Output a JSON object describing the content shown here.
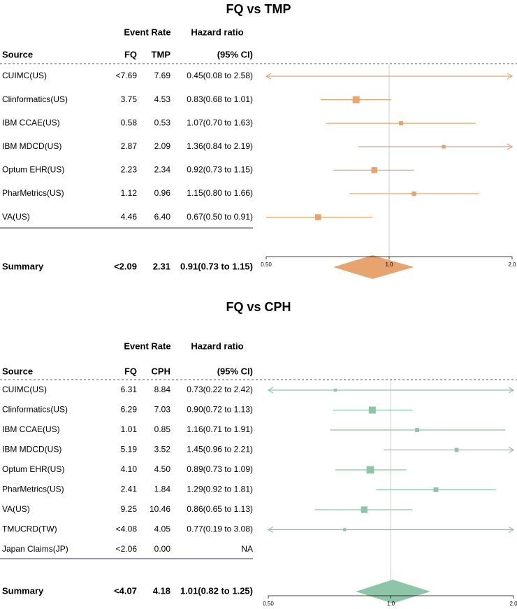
{
  "chart_data": [
    {
      "type": "forest",
      "title": "FQ vs TMP",
      "header": {
        "event_rate": "Event Rate",
        "hazard_ratio": "Hazard ratio",
        "source": "Source",
        "col_a": "FQ",
        "col_b": "TMP",
        "ci": "(95% CI)"
      },
      "color": "#e8a46f",
      "axis": {
        "min": 0.5,
        "max": 2.0,
        "scale": "log",
        "ref": 1.0,
        "ticks": [
          0.5,
          1.0,
          2.0
        ],
        "tick_labels": [
          "0.50",
          "1.0",
          "2.0"
        ]
      },
      "rows": [
        {
          "source": "CUIMC(US)",
          "a": "<7.69",
          "b": "7.69",
          "hr_text": "0.45(0.08 to 2.58)",
          "hr": 0.45,
          "lo": 0.08,
          "hi": 2.58,
          "weight": 0
        },
        {
          "source": "Clinformatics(US)",
          "a": "3.75",
          "b": "4.53",
          "hr_text": "0.83(0.68 to 1.01)",
          "hr": 0.83,
          "lo": 0.68,
          "hi": 1.01,
          "weight": 1.0
        },
        {
          "source": "IBM CCAE(US)",
          "a": "0.58",
          "b": "0.53",
          "hr_text": "1.07(0.70 to 1.63)",
          "hr": 1.07,
          "lo": 0.7,
          "hi": 1.63,
          "weight": 0.45
        },
        {
          "source": "IBM MDCD(US)",
          "a": "2.87",
          "b": "2.09",
          "hr_text": "1.36(0.84 to 2.19)",
          "hr": 1.36,
          "lo": 0.84,
          "hi": 2.19,
          "weight": 0.35
        },
        {
          "source": "Optum EHR(US)",
          "a": "2.23",
          "b": "2.34",
          "hr_text": "0.92(0.73 to 1.15)",
          "hr": 0.92,
          "lo": 0.73,
          "hi": 1.15,
          "weight": 0.8
        },
        {
          "source": "PharMetrics(US)",
          "a": "1.12",
          "b": "0.96",
          "hr_text": "1.15(0.80 to 1.66)",
          "hr": 1.15,
          "lo": 0.8,
          "hi": 1.66,
          "weight": 0.5
        },
        {
          "source": "VA(US)",
          "a": "4.46",
          "b": "6.40",
          "hr_text": "0.67(0.50 to 0.91)",
          "hr": 0.67,
          "lo": 0.5,
          "hi": 0.91,
          "weight": 0.8
        }
      ],
      "summary": {
        "label": "Summary",
        "a": "<2.09",
        "b": "2.31",
        "hr_text": "0.91(0.73 to 1.15)",
        "hr": 0.91,
        "lo": 0.73,
        "hi": 1.15
      }
    },
    {
      "type": "forest",
      "title": "FQ vs CPH",
      "header": {
        "event_rate": "Event Rate",
        "hazard_ratio": "Hazard ratio",
        "source": "Source",
        "col_a": "FQ",
        "col_b": "CPH",
        "ci": "(95% CI)"
      },
      "color": "#8ec4a8",
      "axis": {
        "min": 0.5,
        "max": 2.0,
        "scale": "log",
        "ref": 1.0,
        "ticks": [
          0.5,
          1.0,
          2.0
        ],
        "tick_labels": [
          "0.50",
          "1.0",
          "2.0"
        ]
      },
      "rows": [
        {
          "source": "CUIMC(US)",
          "a": "6.31",
          "b": "8.84",
          "hr_text": "0.73(0.22 to 2.42)",
          "hr": 0.73,
          "lo": 0.22,
          "hi": 2.42,
          "weight": 0.2
        },
        {
          "source": "Clinformatics(US)",
          "a": "6.29",
          "b": "7.03",
          "hr_text": "0.90(0.72 to 1.13)",
          "hr": 0.9,
          "lo": 0.72,
          "hi": 1.13,
          "weight": 1.0
        },
        {
          "source": "IBM CCAE(US)",
          "a": "1.01",
          "b": "0.85",
          "hr_text": "1.16(0.71 to 1.91)",
          "hr": 1.16,
          "lo": 0.71,
          "hi": 1.91,
          "weight": 0.4
        },
        {
          "source": "IBM MDCD(US)",
          "a": "5.19",
          "b": "3.52",
          "hr_text": "1.45(0.96 to 2.21)",
          "hr": 1.45,
          "lo": 0.96,
          "hi": 2.21,
          "weight": 0.4
        },
        {
          "source": "Optum EHR(US)",
          "a": "4.10",
          "b": "4.50",
          "hr_text": "0.89(0.73 to 1.09)",
          "hr": 0.89,
          "lo": 0.73,
          "hi": 1.09,
          "weight": 1.1
        },
        {
          "source": "PharMetrics(US)",
          "a": "2.41",
          "b": "1.84",
          "hr_text": "1.29(0.92 to 1.81)",
          "hr": 1.29,
          "lo": 0.92,
          "hi": 1.81,
          "weight": 0.55
        },
        {
          "source": "VA(US)",
          "a": "9.25",
          "b": "10.46",
          "hr_text": "0.86(0.65 to 1.13)",
          "hr": 0.86,
          "lo": 0.65,
          "hi": 1.13,
          "weight": 0.9
        },
        {
          "source": "TMUCRD(TW)",
          "a": "<4.08",
          "b": "4.05",
          "hr_text": "0.77(0.19 to 3.08)",
          "hr": 0.77,
          "lo": 0.19,
          "hi": 3.08,
          "weight": 0.2
        },
        {
          "source": "Japan Claims(JP)",
          "a": "<2.06",
          "b": "0.00",
          "hr_text": "NA",
          "hr": null,
          "lo": null,
          "hi": null,
          "weight": 0
        }
      ],
      "summary": {
        "label": "Summary",
        "a": "<4.07",
        "b": "4.18",
        "hr_text": "1.01(0.82 to 1.25)",
        "hr": 1.01,
        "lo": 0.82,
        "hi": 1.25
      }
    }
  ]
}
